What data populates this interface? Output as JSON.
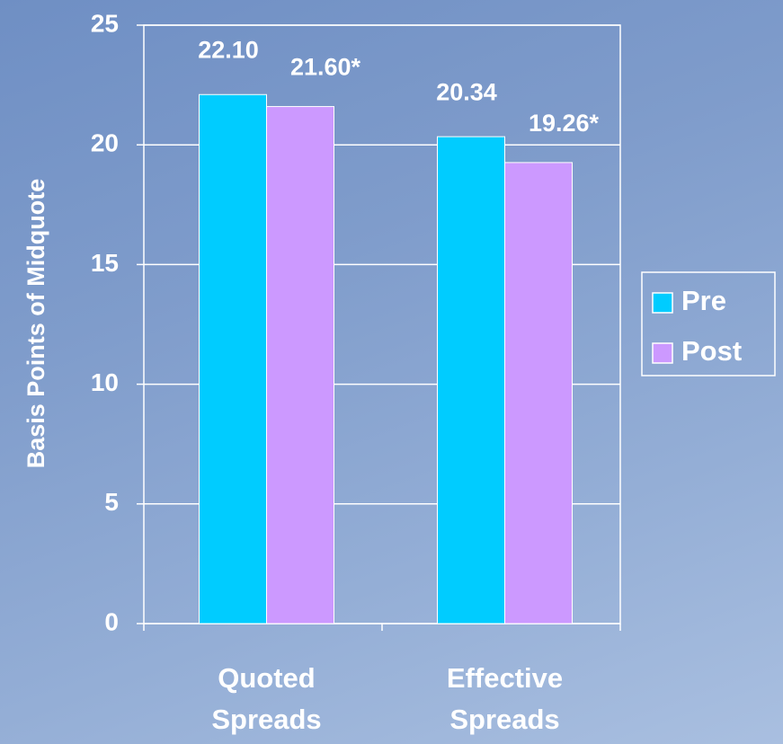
{
  "chart_data": {
    "type": "bar",
    "y_label": "Basis Points of Midquote",
    "categories": [
      "Quoted Spreads",
      "Effective Spreads"
    ],
    "series": [
      {
        "name": "Pre",
        "color": "#00ccff",
        "values": [
          22.1,
          20.34
        ],
        "value_labels": [
          "22.10",
          "20.34"
        ]
      },
      {
        "name": "Post",
        "color": "#cc99ff",
        "values": [
          21.6,
          19.26
        ],
        "value_labels": [
          "21.60*",
          "19.26*"
        ]
      }
    ],
    "ylim": [
      0,
      25
    ],
    "yticks": [
      0,
      5,
      10,
      15,
      20,
      25
    ],
    "grid": true,
    "legend": "right"
  }
}
